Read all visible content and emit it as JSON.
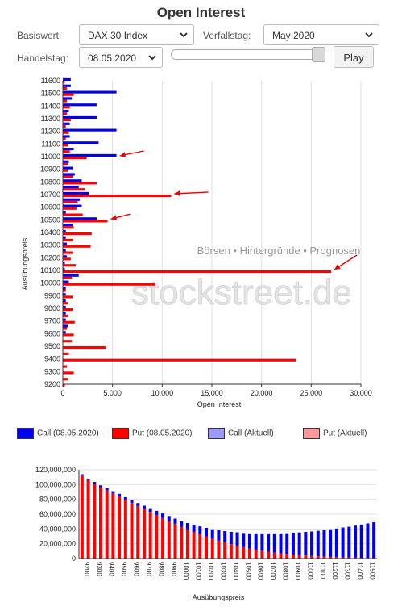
{
  "header": {
    "title": "Open Interest"
  },
  "controls": {
    "basiswert_label": "Basiswert:",
    "basiswert_value": "DAX 30 Index",
    "verfallstag_label": "Verfallstag:",
    "verfallstag_value": "May 2020",
    "handelstag_label": "Handelstag:",
    "handelstag_value": "08.05.2020",
    "play_label": "Play"
  },
  "watermark": {
    "brand": "stockstreet.de",
    "tagline": "Börsen • Hintergründe • Prognosen"
  },
  "colors": {
    "call": "#0000ee",
    "put": "#ff0000",
    "call_aktuell": "#9999ff",
    "put_aktuell": "#ff9999",
    "arrow": "#ee0000"
  },
  "legend": [
    {
      "label": "Call (08.05.2020)",
      "color": "#0000ee"
    },
    {
      "label": "Put (08.05.2020)",
      "color": "#ff0000"
    },
    {
      "label": "Call (Aktuell)",
      "color": "#9999ff"
    },
    {
      "label": "Put (Aktuell)",
      "color": "#ff9999"
    }
  ],
  "chart_data": [
    {
      "type": "bar",
      "orientation": "horizontal",
      "xlabel": "Open Interest",
      "ylabel": "Ausübungspreis",
      "xlim": [
        0,
        30000
      ],
      "x_ticks": [
        "0",
        "5,000",
        "10,000",
        "15,000",
        "20,000",
        "25,000",
        "30,000"
      ],
      "y_ticks": [
        "9200",
        "9300",
        "9400",
        "9500",
        "9600",
        "9700",
        "9800",
        "9900",
        "10000",
        "10100",
        "10200",
        "10300",
        "10400",
        "10500",
        "10600",
        "10700",
        "10800",
        "10900",
        "11000",
        "11100",
        "11200",
        "11300",
        "11400",
        "11500",
        "11600"
      ],
      "grid": "vertical",
      "annotations": "red arrows pointing at strikes 11000, 10700, 10500, 10100",
      "strikes": [
        9200,
        9250,
        9300,
        9350,
        9400,
        9450,
        9500,
        9550,
        9600,
        9650,
        9700,
        9750,
        9800,
        9850,
        9900,
        9950,
        10000,
        10050,
        10100,
        10150,
        10200,
        10250,
        10300,
        10350,
        10400,
        10450,
        10500,
        10550,
        10600,
        10650,
        10700,
        10750,
        10800,
        10850,
        10900,
        10950,
        11000,
        11050,
        11100,
        11150,
        11200,
        11250,
        11300,
        11350,
        11400,
        11450,
        11500,
        11550,
        11600
      ],
      "series": [
        {
          "name": "Call (08.05.2020)",
          "values": [
            0,
            0,
            0,
            0,
            0,
            0,
            0,
            0,
            300,
            500,
            300,
            300,
            300,
            300,
            300,
            300,
            600,
            1600,
            200,
            200,
            400,
            300,
            400,
            300,
            300,
            1000,
            3400,
            300,
            1900,
            1700,
            2600,
            1600,
            1900,
            1200,
            1000,
            600,
            5400,
            1100,
            3600,
            700,
            5400,
            700,
            3400,
            600,
            3400,
            900,
            5400,
            800,
            800
          ]
        },
        {
          "name": "Put (08.05.2020)",
          "values": [
            200,
            500,
            1100,
            400,
            23500,
            600,
            4300,
            900,
            1100,
            400,
            1200,
            500,
            1000,
            500,
            1000,
            300,
            9300,
            900,
            27000,
            1300,
            800,
            1000,
            2800,
            1000,
            2900,
            1100,
            4500,
            2000,
            1400,
            1500,
            10900,
            2200,
            3400,
            1000,
            500,
            500,
            2400,
            700,
            500,
            300,
            600,
            300,
            800,
            400,
            700,
            400,
            1100,
            400,
            200
          ]
        }
      ]
    },
    {
      "type": "bar",
      "stacked": true,
      "xlabel": "Ausübungspreis",
      "ylabel": "",
      "ylim": [
        0,
        120000000
      ],
      "y_ticks": [
        "0",
        "20,000,000",
        "40,000,000",
        "60,000,000",
        "80,000,000",
        "100,000,000",
        "120,000,000"
      ],
      "x_ticks": [
        "9200",
        "9300",
        "9400",
        "9500",
        "9600",
        "9700",
        "9800",
        "9900",
        "10000",
        "10100",
        "10200",
        "10300",
        "10400",
        "10500",
        "10600",
        "10700",
        "10800",
        "10900",
        "11000",
        "11100",
        "11200",
        "11300",
        "11400",
        "11500"
      ],
      "strikes": [
        9200,
        9250,
        9300,
        9350,
        9400,
        9450,
        9500,
        9550,
        9600,
        9650,
        9700,
        9750,
        9800,
        9850,
        9900,
        9950,
        10000,
        10050,
        10100,
        10150,
        10200,
        10250,
        10300,
        10350,
        10400,
        10450,
        10500,
        10550,
        10600,
        10650,
        10700,
        10750,
        10800,
        10850,
        10900,
        10950,
        11000,
        11050,
        11100,
        11150,
        11200,
        11250,
        11300,
        11350,
        11400,
        11450,
        11500,
        11550
      ],
      "series": [
        {
          "name": "Put",
          "values": [
            112000000,
            106000000,
            101000000,
            96500000,
            92000000,
            88000000,
            84000000,
            79500000,
            75000000,
            71000000,
            67000000,
            63000000,
            59000000,
            55000000,
            51000000,
            47000000,
            43000000,
            39500000,
            36000000,
            33000000,
            30000000,
            27000000,
            24500000,
            22000000,
            19500000,
            17500000,
            15500000,
            13500000,
            12000000,
            10500000,
            9200000,
            8000000,
            7000000,
            6200000,
            5500000,
            4800000,
            4200000,
            3600000,
            3100000,
            2700000,
            2300000,
            2000000,
            1700000,
            1400000,
            1200000,
            1000000,
            800000,
            700000
          ]
        },
        {
          "name": "Call",
          "values": [
            2000000,
            2000000,
            2500000,
            2500000,
            3000000,
            3000000,
            3500000,
            3500000,
            4000000,
            4000000,
            4500000,
            5000000,
            5500000,
            6000000,
            6500000,
            7000000,
            7500000,
            8500000,
            9500000,
            10500000,
            11500000,
            12500000,
            14000000,
            15000000,
            16500000,
            18000000,
            19000000,
            20500000,
            22000000,
            23500000,
            24800000,
            26000000,
            27000000,
            28000000,
            29500000,
            30500000,
            31800000,
            33000000,
            34400000,
            35800000,
            37200000,
            38500000,
            40300000,
            41600000,
            43300000,
            45000000,
            46700000,
            48300000
          ]
        }
      ]
    }
  ]
}
